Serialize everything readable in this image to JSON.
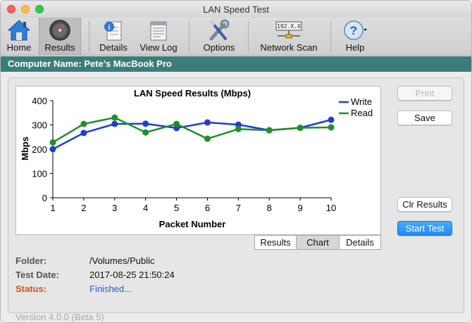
{
  "window": {
    "title": "LAN Speed Test"
  },
  "toolbar": {
    "items": [
      {
        "label": "Home",
        "icon": "home-icon"
      },
      {
        "label": "Results",
        "icon": "gauge-icon",
        "active": true
      },
      {
        "label": "Details",
        "icon": "details-icon"
      },
      {
        "label": "View Log",
        "icon": "log-icon"
      },
      {
        "label": "Options",
        "icon": "tools-icon"
      },
      {
        "label": "Network Scan",
        "icon": "ip-scan-icon",
        "ip_text": "192.X.X"
      },
      {
        "label": "Help",
        "icon": "help-icon"
      }
    ]
  },
  "computer": {
    "name_line": "Computer Name: Pete’s MacBook Pro"
  },
  "buttons": {
    "print": "Print",
    "save": "Save",
    "clear": "Clr Results",
    "start": "Start Test"
  },
  "tabs": {
    "results": "Results",
    "chart": "Chart",
    "details": "Details",
    "selected": "Chart"
  },
  "info": {
    "folder_label": "Folder:",
    "folder_value": "/Volumes/Public",
    "date_label": "Test Date:",
    "date_value": "2017-08-25 21:50:24",
    "status_label": "Status:",
    "status_value": "Finished..."
  },
  "version": "Version 4.0.0 (Beta 5)",
  "chart_data": {
    "type": "line",
    "title": "LAN Speed Results (Mbps)",
    "xlabel": "Packet Number",
    "ylabel": "Mbps",
    "x": [
      1,
      2,
      3,
      4,
      5,
      6,
      7,
      8,
      9,
      10
    ],
    "xlim": [
      1,
      10
    ],
    "ylim": [
      0,
      400
    ],
    "yticks": [
      0,
      100,
      200,
      300,
      400
    ],
    "grid": false,
    "legend_position": "top-right",
    "series": [
      {
        "name": "Write",
        "color": "#1f3fcf",
        "values": [
          200,
          267,
          304,
          305,
          287,
          310,
          301,
          278,
          288,
          321
        ]
      },
      {
        "name": "Read",
        "color": "#1f8f2a",
        "values": [
          228,
          304,
          330,
          269,
          304,
          243,
          283,
          278,
          288,
          290
        ]
      }
    ]
  }
}
